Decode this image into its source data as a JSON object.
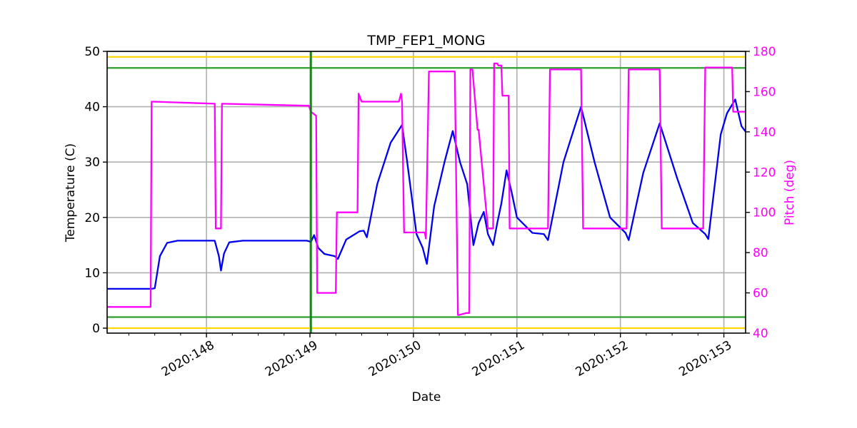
{
  "chart_data": {
    "type": "line",
    "title": "TMP_FEP1_MONG",
    "xlabel": "Date",
    "ylabel": "Temperature (C)",
    "y2label": "Pitch (deg)",
    "xlim": [
      147.04,
      153.21
    ],
    "ylim": [
      -0.9,
      50
    ],
    "y2lim": [
      40,
      180
    ],
    "grid": true,
    "legend": null,
    "xticks": [
      148,
      149,
      150,
      151,
      152,
      153
    ],
    "xtick_labels": [
      "2020:148",
      "2020:149",
      "2020:150",
      "2020:151",
      "2020:152",
      "2020:153"
    ],
    "yticks": [
      0,
      10,
      20,
      30,
      40,
      50
    ],
    "ytick_labels": [
      "0",
      "10",
      "20",
      "30",
      "40",
      "50"
    ],
    "y2ticks": [
      40,
      60,
      80,
      100,
      120,
      140,
      160,
      180
    ],
    "y2tick_labels": [
      "40",
      "60",
      "80",
      "100",
      "120",
      "140",
      "160",
      "180"
    ],
    "colors": {
      "temperature": "#0000ee",
      "pitch": "#ff00ff",
      "planning_limit": "#2ca02c",
      "caution_limit": "#ffd700",
      "now_line": "#008000",
      "grid": "#b0b0b0",
      "y2_axis_text": "#ff00ff"
    },
    "limits": [
      {
        "name": "yellow_high",
        "value": 49,
        "color": "#ffd700"
      },
      {
        "name": "planning_high",
        "value": 47,
        "color": "#2ca02c"
      },
      {
        "name": "planning_low",
        "value": 2,
        "color": "#2ca02c"
      },
      {
        "name": "yellow_low",
        "value": 0,
        "color": "#ffd700"
      }
    ],
    "vertical_line": {
      "x": 149.01,
      "color": "#008000"
    },
    "series": [
      {
        "name": "Temperature",
        "axis": "left",
        "color": "#0000ee",
        "x": [
          147.04,
          147.47,
          147.5,
          147.55,
          147.62,
          147.72,
          148.08,
          148.12,
          148.14,
          148.17,
          148.22,
          148.35,
          148.97,
          149.01,
          149.04,
          149.08,
          149.14,
          149.24,
          149.27,
          149.35,
          149.48,
          149.52,
          149.55,
          149.65,
          149.78,
          149.89,
          149.94,
          150.03,
          150.09,
          150.13,
          150.2,
          150.3,
          150.38,
          150.45,
          150.52,
          150.58,
          150.63,
          150.68,
          150.72,
          150.77,
          150.81,
          150.85,
          150.9,
          150.95,
          151.0,
          151.15,
          151.26,
          151.3,
          151.45,
          151.62,
          151.75,
          151.9,
          152.05,
          152.08,
          152.22,
          152.38,
          152.55,
          152.7,
          152.82,
          152.85,
          152.97,
          153.03,
          153.11,
          153.17,
          153.21
        ],
        "y": [
          7.1,
          7.1,
          7.2,
          13.0,
          15.4,
          15.8,
          15.8,
          13.0,
          10.4,
          13.5,
          15.5,
          15.8,
          15.8,
          15.6,
          16.8,
          14.5,
          13.4,
          13.0,
          12.5,
          16.0,
          17.5,
          17.6,
          16.4,
          26.0,
          33.5,
          36.7,
          30.0,
          17.0,
          14.5,
          11.6,
          22.0,
          30.0,
          35.6,
          30.0,
          26.0,
          15.0,
          19.0,
          21.0,
          17.0,
          15.0,
          19.0,
          22.5,
          28.5,
          24.5,
          20.0,
          17.2,
          17.0,
          15.9,
          30.0,
          40.0,
          30.0,
          20.0,
          17.2,
          15.9,
          28.0,
          37.0,
          27.0,
          19.0,
          17.0,
          16.1,
          35.0,
          38.8,
          41.3,
          36.5,
          35.5
        ]
      },
      {
        "name": "Pitch",
        "axis": "right",
        "color": "#ff00ff",
        "x": [
          147.04,
          147.46,
          147.47,
          147.49,
          148.08,
          148.09,
          148.14,
          148.15,
          148.97,
          148.99,
          149.01,
          149.06,
          149.07,
          149.25,
          149.26,
          149.46,
          149.47,
          149.5,
          149.86,
          149.88,
          149.89,
          149.91,
          150.11,
          150.12,
          150.15,
          150.4,
          150.43,
          150.44,
          150.51,
          150.54,
          150.55,
          150.57,
          150.62,
          150.63,
          150.72,
          150.77,
          150.78,
          150.81,
          150.82,
          150.85,
          150.86,
          150.92,
          150.93,
          151.3,
          151.32,
          151.62,
          151.64,
          152.06,
          152.08,
          152.38,
          152.4,
          152.8,
          152.82,
          153.08,
          153.09,
          153.21
        ],
        "y": [
          53,
          53,
          155,
          155,
          154,
          92,
          92,
          154,
          153,
          153,
          150,
          148,
          60,
          60,
          100,
          100,
          159,
          155,
          155,
          159,
          155,
          90,
          90,
          87,
          170,
          170,
          49,
          49,
          50,
          50,
          171,
          171,
          141,
          141,
          92,
          92,
          174,
          174,
          173,
          173,
          158,
          158,
          92,
          92,
          171,
          171,
          92,
          92,
          171,
          171,
          92,
          92,
          172,
          172,
          150,
          150
        ]
      }
    ]
  }
}
